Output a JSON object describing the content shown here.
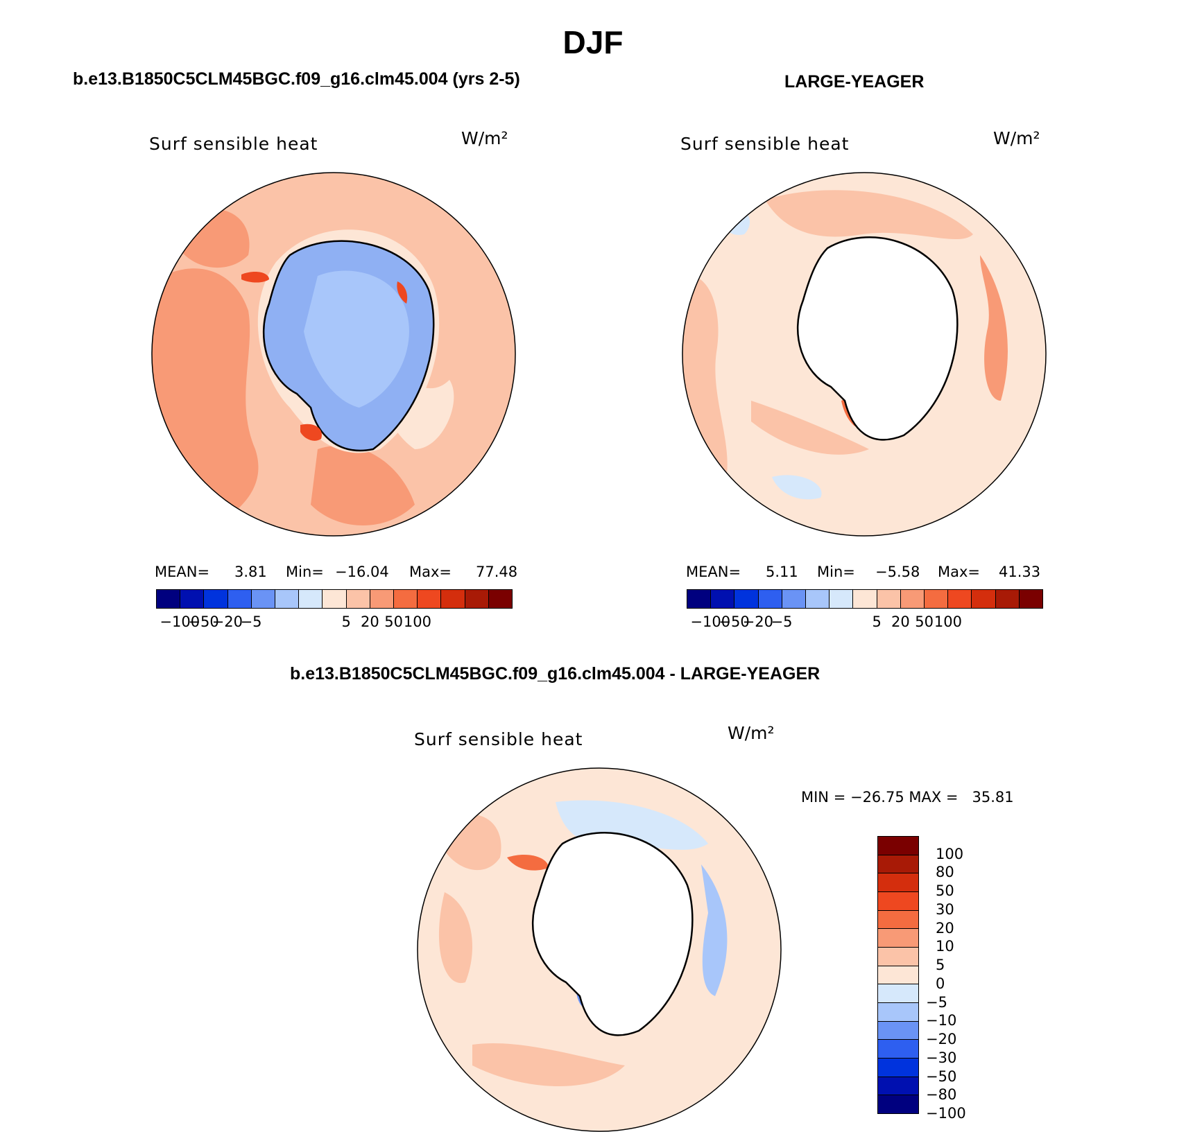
{
  "title": "DJF",
  "panels": {
    "left": {
      "title": "b.e13.B1850C5CLM45BGC.f09_g16.clm45.004 (yrs 2-5)",
      "variable": "Surf sensible heat",
      "units": "W/m²",
      "stats": {
        "mean_label": "MEAN=",
        "mean": "3.81",
        "min_label": "Min=",
        "min": "−16.04",
        "max_label": "Max=",
        "max": "77.48"
      }
    },
    "right": {
      "title": "LARGE-YEAGER",
      "variable": "Surf sensible heat",
      "units": "W/m²",
      "stats": {
        "mean_label": "MEAN=",
        "mean": "5.11",
        "min_label": "Min=",
        "min": "−5.58",
        "max_label": "Max=",
        "max": "41.33"
      }
    },
    "diff": {
      "title": "b.e13.B1850C5CLM45BGC.f09_g16.clm45.004 - LARGE-YEAGER",
      "variable": "Surf sensible heat",
      "units": "W/m²",
      "stats": "MIN = −26.75 MAX =   35.81"
    }
  },
  "colorbar_horizontal": {
    "ticks": [
      "−100",
      "−50",
      "−20",
      "−5",
      "5",
      "20",
      "50",
      "100"
    ],
    "colors": [
      "#00007f",
      "#0010b0",
      "#0033dd",
      "#2e5ff0",
      "#6a93f5",
      "#a8c6fa",
      "#d6e8fb",
      "#fde6d6",
      "#fbc3a8",
      "#f89a76",
      "#f46c40",
      "#ee4820",
      "#d42e0d",
      "#a81a06",
      "#7a0000"
    ]
  },
  "colorbar_vertical": {
    "ticks": [
      "100",
      "80",
      "50",
      "30",
      "20",
      "10",
      "5",
      "0",
      "−5",
      "−10",
      "−20",
      "−30",
      "−50",
      "−80",
      "−100"
    ],
    "colors": [
      "#7a0000",
      "#a81a06",
      "#d42e0d",
      "#ee4820",
      "#f46c40",
      "#f89a76",
      "#fbc3a8",
      "#fde6d6",
      "#d6e8fb",
      "#a8c6fa",
      "#6a93f5",
      "#2e5ff0",
      "#0033dd",
      "#0010b0",
      "#00007f"
    ]
  }
}
